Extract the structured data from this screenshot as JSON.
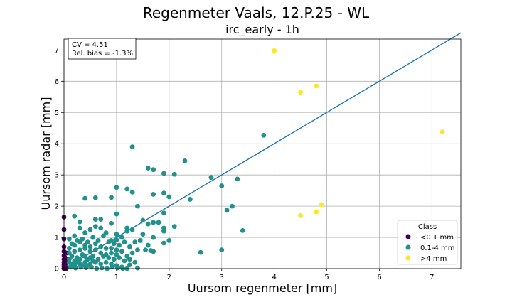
{
  "chart_data": {
    "type": "scatter",
    "title": "Regenmeter Vaals, 12.P.25 - WL",
    "subtitle": "irc_early - 1h",
    "xlabel": "Uursom regenmeter [mm]",
    "ylabel": "Uursom radar [mm]",
    "xlim": [
      0,
      7.55
    ],
    "ylim": [
      0,
      7.35
    ],
    "xticks": [
      0,
      1,
      2,
      3,
      4,
      5,
      6,
      7
    ],
    "yticks": [
      0,
      1,
      2,
      3,
      4,
      5,
      6,
      7
    ],
    "grid": true,
    "stats": [
      "CV = 4.51",
      "Rel. bias = -1.3%"
    ],
    "stats_placement": "top-left",
    "reference_line": {
      "x": [
        0,
        7.55
      ],
      "y": [
        0,
        7.55
      ],
      "color": "#1f77b4"
    },
    "legend": {
      "title": "Class",
      "placement": "bottom-right",
      "entries": [
        {
          "label": "<0.1 mm",
          "color": "#440154"
        },
        {
          "label": "0.1-4 mm",
          "color": "#21918c"
        },
        {
          "label": ">4 mm",
          "color": "#fde725"
        }
      ]
    },
    "series": [
      {
        "name": "<0.1 mm",
        "color": "#440154",
        "points": [
          [
            0,
            1.65
          ],
          [
            0,
            1.25
          ],
          [
            0,
            0.95
          ],
          [
            0,
            0.7
          ],
          [
            0,
            0.55
          ],
          [
            0,
            0.42
          ],
          [
            0,
            0.3
          ],
          [
            0,
            0.2
          ],
          [
            0,
            0.12
          ],
          [
            0,
            0.05
          ],
          [
            0,
            0.0
          ],
          [
            0.02,
            0.35
          ],
          [
            0.03,
            0.15
          ],
          [
            0.04,
            0.0
          ],
          [
            0.05,
            0.5
          ],
          [
            0.06,
            0.25
          ]
        ]
      },
      {
        "name": "0.1-4 mm",
        "color": "#21918c",
        "points": [
          [
            1.3,
            3.9
          ],
          [
            1.6,
            3.22
          ],
          [
            1.7,
            3.17
          ],
          [
            1.9,
            3.05
          ],
          [
            2.1,
            3.02
          ],
          [
            2.3,
            3.45
          ],
          [
            3.8,
            4.27
          ],
          [
            2.8,
            2.92
          ],
          [
            3.3,
            2.87
          ],
          [
            3.0,
            2.65
          ],
          [
            2.0,
            2.3
          ],
          [
            2.4,
            2.22
          ],
          [
            1.7,
            2.38
          ],
          [
            1.9,
            2.42
          ],
          [
            3.2,
            2.0
          ],
          [
            3.1,
            1.87
          ],
          [
            1.2,
            2.55
          ],
          [
            1.3,
            2.45
          ],
          [
            1.0,
            2.6
          ],
          [
            0.9,
            2.28
          ],
          [
            0.6,
            2.27
          ],
          [
            0.4,
            2.25
          ],
          [
            1.4,
            2.0
          ],
          [
            1.0,
            1.75
          ],
          [
            1.9,
            1.78
          ],
          [
            2.1,
            1.35
          ],
          [
            3.4,
            1.22
          ],
          [
            2.6,
            0.52
          ],
          [
            3.0,
            0.6
          ],
          [
            0.2,
            1.68
          ],
          [
            0.3,
            1.5
          ],
          [
            0.6,
            1.58
          ],
          [
            0.7,
            1.58
          ],
          [
            0.9,
            1.45
          ],
          [
            1.2,
            1.3
          ],
          [
            1.5,
            1.55
          ],
          [
            1.6,
            1.43
          ],
          [
            1.7,
            1.48
          ],
          [
            1.8,
            1.48
          ],
          [
            1.9,
            1.3
          ],
          [
            1.9,
            1.2
          ],
          [
            2.0,
            0.9
          ],
          [
            1.9,
            0.82
          ],
          [
            1.7,
            1.0
          ],
          [
            1.5,
            1.1
          ],
          [
            1.3,
            1.25
          ],
          [
            1.2,
            1.2
          ],
          [
            1.1,
            1.0
          ],
          [
            1.0,
            1.1
          ],
          [
            1.0,
            0.92
          ],
          [
            0.9,
            0.9
          ],
          [
            0.8,
            1.15
          ],
          [
            0.7,
            1.3
          ],
          [
            0.6,
            1.35
          ],
          [
            0.5,
            1.25
          ],
          [
            0.4,
            1.15
          ],
          [
            0.3,
            1.3
          ],
          [
            0.2,
            1.05
          ],
          [
            0.1,
            0.95
          ],
          [
            0.15,
            0.8
          ],
          [
            0.25,
            0.9
          ],
          [
            0.35,
            0.95
          ],
          [
            0.45,
            0.85
          ],
          [
            0.55,
            1.0
          ],
          [
            0.65,
            0.9
          ],
          [
            0.75,
            1.05
          ],
          [
            0.85,
            0.85
          ],
          [
            0.95,
            0.8
          ],
          [
            1.05,
            0.75
          ],
          [
            1.15,
            0.85
          ],
          [
            1.25,
            0.7
          ],
          [
            1.35,
            0.85
          ],
          [
            1.45,
            0.9
          ],
          [
            1.55,
            0.6
          ],
          [
            1.65,
            0.58
          ],
          [
            1.7,
            0.55
          ],
          [
            1.6,
            0.75
          ],
          [
            1.4,
            0.6
          ],
          [
            1.3,
            0.5
          ],
          [
            1.2,
            0.4
          ],
          [
            1.1,
            0.55
          ],
          [
            1.0,
            0.6
          ],
          [
            0.9,
            0.5
          ],
          [
            0.8,
            0.65
          ],
          [
            0.7,
            0.7
          ],
          [
            0.6,
            0.6
          ],
          [
            0.5,
            0.55
          ],
          [
            0.4,
            0.65
          ],
          [
            0.3,
            0.6
          ],
          [
            0.2,
            0.55
          ],
          [
            0.1,
            0.5
          ],
          [
            0.15,
            0.4
          ],
          [
            0.25,
            0.35
          ],
          [
            0.35,
            0.45
          ],
          [
            0.45,
            0.3
          ],
          [
            0.55,
            0.4
          ],
          [
            0.65,
            0.3
          ],
          [
            0.75,
            0.4
          ],
          [
            0.85,
            0.35
          ],
          [
            0.95,
            0.3
          ],
          [
            1.05,
            0.35
          ],
          [
            1.15,
            0.25
          ],
          [
            1.25,
            0.3
          ],
          [
            1.35,
            0.2
          ],
          [
            1.25,
            0.12
          ],
          [
            1.1,
            0.05
          ],
          [
            1.0,
            0.1
          ],
          [
            0.9,
            0.15
          ],
          [
            0.8,
            0.2
          ],
          [
            0.7,
            0.15
          ],
          [
            0.6,
            0.2
          ],
          [
            0.5,
            0.15
          ],
          [
            0.4,
            0.2
          ],
          [
            0.3,
            0.15
          ],
          [
            0.2,
            0.1
          ],
          [
            0.1,
            0.2
          ],
          [
            0.12,
            0.05
          ],
          [
            0.22,
            0.02
          ],
          [
            0.32,
            0.05
          ],
          [
            0.42,
            0.03
          ],
          [
            0.52,
            0.05
          ],
          [
            0.62,
            0.0
          ],
          [
            0.72,
            0.02
          ],
          [
            0.82,
            0.0
          ],
          [
            0.92,
            0.05
          ],
          [
            1.02,
            0.02
          ],
          [
            1.12,
            0.0
          ],
          [
            1.2,
            0.0
          ],
          [
            1.4,
            0.02
          ],
          [
            0.1,
            0.65
          ],
          [
            0.2,
            0.75
          ],
          [
            0.3,
            0.85
          ],
          [
            0.4,
            0.75
          ],
          [
            0.5,
            0.7
          ],
          [
            0.6,
            0.8
          ],
          [
            0.7,
            0.5
          ],
          [
            0.8,
            0.45
          ],
          [
            0.9,
            0.65
          ],
          [
            1.0,
            0.45
          ],
          [
            0.1,
            0.3
          ],
          [
            0.2,
            0.25
          ],
          [
            0.3,
            0.3
          ],
          [
            0.4,
            0.4
          ],
          [
            0.5,
            0.35
          ],
          [
            0.45,
            0.1
          ],
          [
            0.35,
            0.1
          ],
          [
            0.25,
            0.2
          ],
          [
            0.15,
            0.15
          ],
          [
            0.55,
            0.25
          ]
        ]
      },
      {
        "name": ">4 mm",
        "color": "#fde725",
        "points": [
          [
            4.0,
            6.98
          ],
          [
            4.5,
            5.65
          ],
          [
            4.8,
            5.85
          ],
          [
            7.2,
            4.38
          ],
          [
            4.5,
            1.7
          ],
          [
            4.8,
            1.82
          ],
          [
            4.9,
            2.05
          ]
        ]
      }
    ]
  }
}
